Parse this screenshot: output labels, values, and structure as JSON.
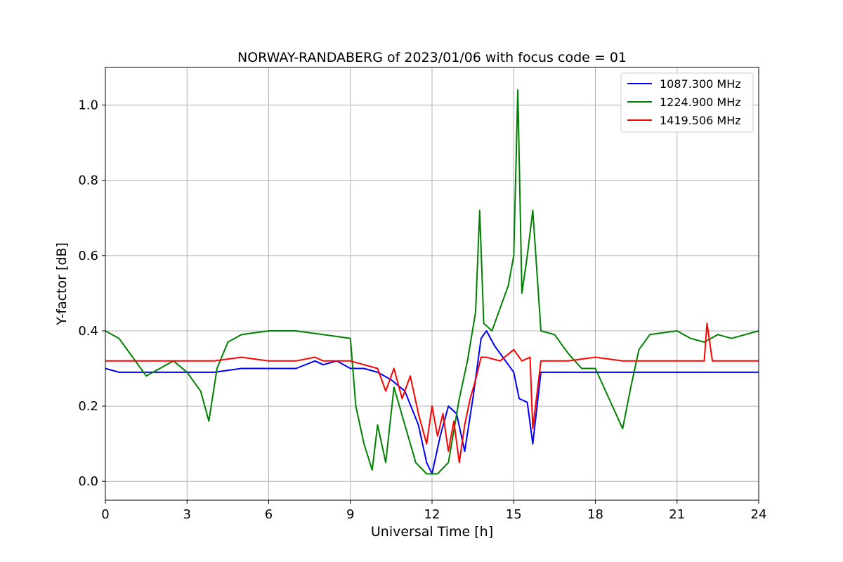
{
  "chart_data": {
    "type": "line",
    "title": "NORWAY-RANDABERG of 2023/01/06 with focus code = 01",
    "xlabel": "Universal Time [h]",
    "ylabel": "Y-factor [dB]",
    "xlim": [
      0,
      24
    ],
    "ylim": [
      -0.05,
      1.1
    ],
    "xticks": [
      0,
      3,
      6,
      9,
      12,
      15,
      18,
      21,
      24
    ],
    "xtick_labels": [
      "0",
      "3",
      "6",
      "9",
      "12",
      "15",
      "18",
      "21",
      "24"
    ],
    "yticks": [
      0.0,
      0.2,
      0.4,
      0.6,
      0.8,
      1.0
    ],
    "ytick_labels": [
      "0.0",
      "0.2",
      "0.4",
      "0.6",
      "0.8",
      "1.0"
    ],
    "grid": true,
    "legend_position": "top-right",
    "series": [
      {
        "name": "1087.300 MHz",
        "color": "#0000ff",
        "x": [
          0,
          0.5,
          1,
          2,
          3,
          4,
          5,
          6,
          7,
          7.7,
          8,
          8.5,
          9,
          9.5,
          10,
          10.5,
          11,
          11.5,
          11.8,
          12,
          12.3,
          12.6,
          12.9,
          13.2,
          13.5,
          13.8,
          14,
          14.3,
          14.6,
          15,
          15.2,
          15.5,
          15.7,
          16,
          17,
          18,
          19,
          20,
          21,
          22,
          23,
          24
        ],
        "y": [
          0.3,
          0.29,
          0.29,
          0.29,
          0.29,
          0.29,
          0.3,
          0.3,
          0.3,
          0.32,
          0.31,
          0.32,
          0.3,
          0.3,
          0.29,
          0.27,
          0.24,
          0.15,
          0.05,
          0.02,
          0.12,
          0.2,
          0.18,
          0.08,
          0.22,
          0.38,
          0.4,
          0.36,
          0.33,
          0.29,
          0.22,
          0.21,
          0.1,
          0.29,
          0.29,
          0.29,
          0.29,
          0.29,
          0.29,
          0.29,
          0.29,
          0.29
        ]
      },
      {
        "name": "1224.900 MHz",
        "color": "#008000",
        "x": [
          0,
          0.5,
          1,
          1.5,
          2,
          2.5,
          3,
          3.5,
          3.8,
          4.1,
          4.5,
          5,
          6,
          7,
          8,
          9,
          9.2,
          9.5,
          9.8,
          10,
          10.3,
          10.6,
          11,
          11.4,
          11.8,
          12.2,
          12.6,
          13,
          13.3,
          13.6,
          13.75,
          13.9,
          14.2,
          14.5,
          14.8,
          15,
          15.15,
          15.3,
          15.5,
          15.7,
          16,
          16.5,
          17,
          17.5,
          18,
          18.5,
          19,
          19.3,
          19.6,
          20,
          21,
          21.5,
          22,
          22.5,
          23,
          24
        ],
        "y": [
          0.4,
          0.38,
          0.33,
          0.28,
          0.3,
          0.32,
          0.29,
          0.24,
          0.16,
          0.3,
          0.37,
          0.39,
          0.4,
          0.4,
          0.39,
          0.38,
          0.2,
          0.1,
          0.03,
          0.15,
          0.05,
          0.25,
          0.15,
          0.05,
          0.02,
          0.02,
          0.05,
          0.22,
          0.32,
          0.45,
          0.72,
          0.42,
          0.4,
          0.46,
          0.52,
          0.6,
          1.04,
          0.5,
          0.6,
          0.72,
          0.4,
          0.39,
          0.34,
          0.3,
          0.3,
          0.22,
          0.14,
          0.25,
          0.35,
          0.39,
          0.4,
          0.38,
          0.37,
          0.39,
          0.38,
          0.4
        ]
      },
      {
        "name": "1419.506 MHz",
        "color": "#ff0000",
        "x": [
          0,
          1,
          2,
          3,
          4,
          5,
          6,
          7,
          7.7,
          8,
          9,
          9.5,
          10,
          10.3,
          10.6,
          10.9,
          11.2,
          11.5,
          11.8,
          12,
          12.2,
          12.4,
          12.6,
          12.8,
          13,
          13.2,
          13.4,
          13.6,
          13.8,
          14,
          14.5,
          15,
          15.3,
          15.6,
          15.7,
          16,
          17,
          18,
          19,
          20,
          21,
          22,
          22.1,
          22.3,
          23,
          24
        ],
        "y": [
          0.32,
          0.32,
          0.32,
          0.32,
          0.32,
          0.33,
          0.32,
          0.32,
          0.33,
          0.32,
          0.32,
          0.31,
          0.3,
          0.24,
          0.3,
          0.22,
          0.28,
          0.18,
          0.1,
          0.2,
          0.12,
          0.18,
          0.08,
          0.16,
          0.05,
          0.15,
          0.22,
          0.27,
          0.33,
          0.33,
          0.32,
          0.35,
          0.32,
          0.33,
          0.14,
          0.32,
          0.32,
          0.33,
          0.32,
          0.32,
          0.32,
          0.32,
          0.42,
          0.32,
          0.32,
          0.32
        ]
      }
    ]
  }
}
